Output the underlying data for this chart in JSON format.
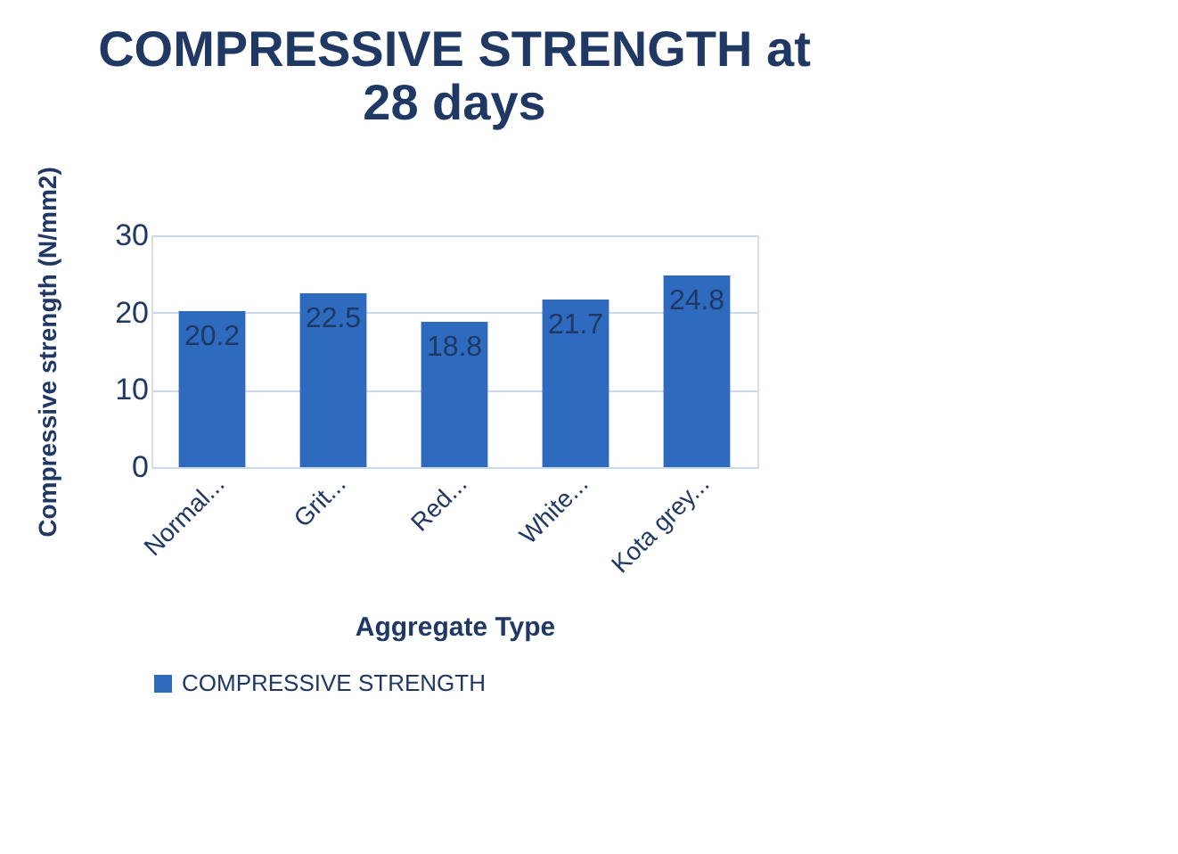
{
  "chart_data": {
    "type": "bar",
    "title": "COMPRESSIVE STRENGTH at 28 days",
    "xlabel": "Aggregate Type",
    "ylabel": "Compressive strength (N/mm2)",
    "categories": [
      "Normal...",
      "Grit...",
      "Red...",
      "White...",
      "Kota grey..."
    ],
    "series": [
      {
        "name": "COMPRESSIVE STRENGTH",
        "color": "#2e6bbf",
        "values": [
          20.2,
          22.5,
          18.8,
          21.7,
          24.8
        ]
      }
    ],
    "ylim": [
      0,
      30
    ],
    "yticks": [
      0,
      10,
      20,
      30
    ],
    "grid": "y",
    "legend": "bottom",
    "data_labels": true
  }
}
